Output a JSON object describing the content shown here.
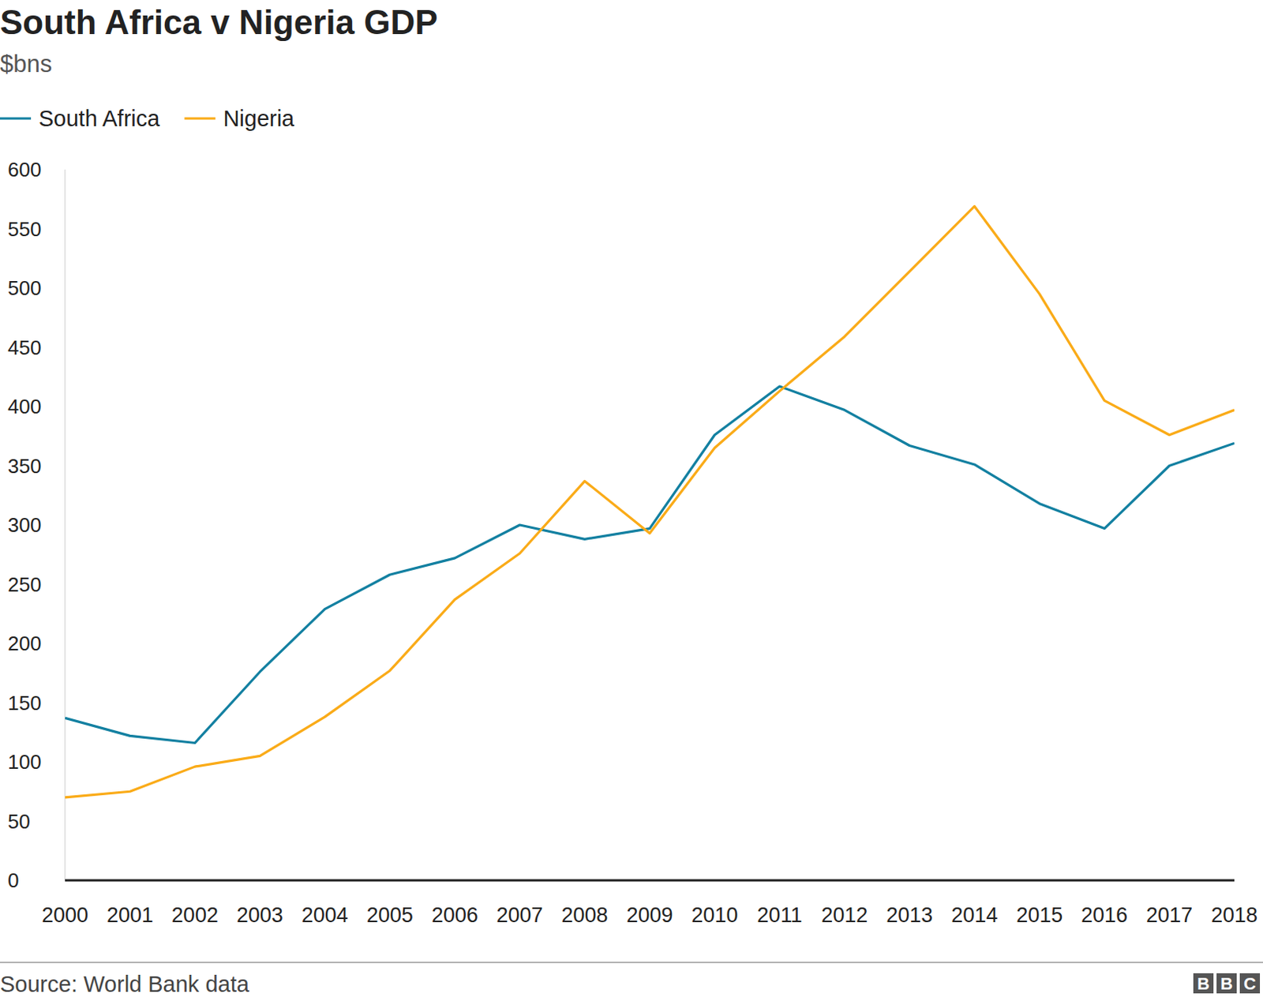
{
  "chart_data": {
    "type": "line",
    "title": "South Africa v Nigeria GDP",
    "subtitle": "$bns",
    "categories": [
      "2000",
      "2001",
      "2002",
      "2003",
      "2004",
      "2005",
      "2006",
      "2007",
      "2008",
      "2009",
      "2010",
      "2011",
      "2012",
      "2013",
      "2014",
      "2015",
      "2016",
      "2017",
      "2018"
    ],
    "series": [
      {
        "name": "South Africa",
        "color": "#1380a1",
        "values": [
          137,
          122,
          116,
          176,
          229,
          258,
          272,
          300,
          288,
          297,
          376,
          417,
          397,
          367,
          351,
          318,
          297,
          350,
          369
        ]
      },
      {
        "name": "Nigeria",
        "color": "#faab18",
        "values": [
          70,
          75,
          96,
          105,
          138,
          177,
          237,
          276,
          337,
          293,
          365,
          413,
          459,
          514,
          569,
          495,
          405,
          376,
          397
        ]
      }
    ],
    "ylim": [
      0,
      600
    ],
    "yticks": [
      0,
      50,
      100,
      150,
      200,
      250,
      300,
      350,
      400,
      450,
      500,
      550,
      600
    ],
    "grid": false,
    "legend": "top-left",
    "source": "Source: World Bank data",
    "logo": "BBC"
  }
}
